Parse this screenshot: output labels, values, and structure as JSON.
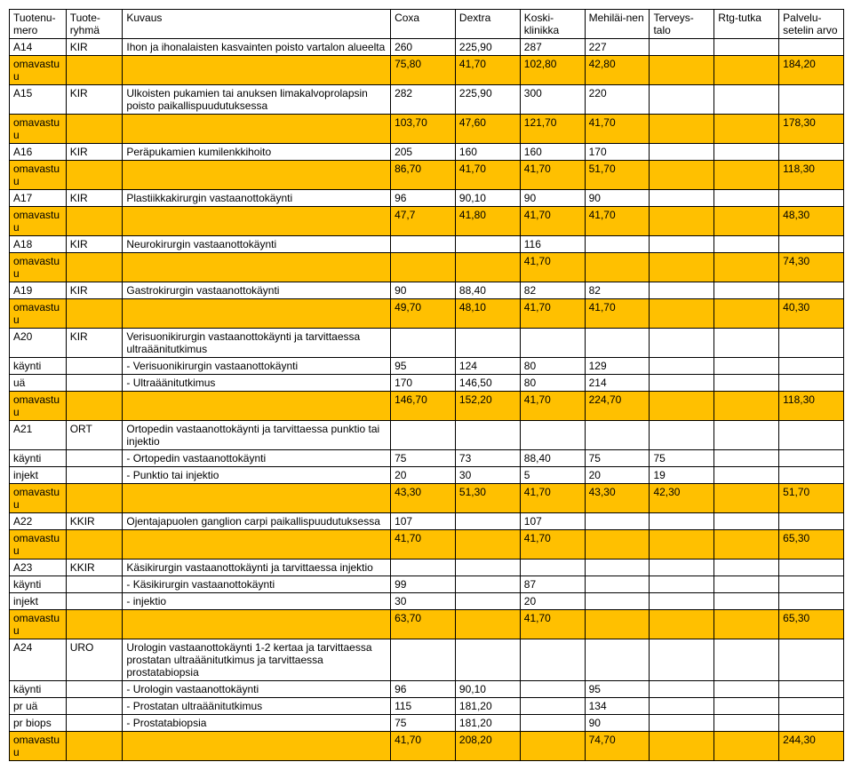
{
  "headers": [
    "Tuotenu-mero",
    "Tuote-ryhmä",
    "Kuvaus",
    "Coxa",
    "Dextra",
    "Koski-klinikka",
    "Mehiläi-nen",
    "Terveys-talo",
    "Rtg-tutka",
    "Palvelu-setelin arvo"
  ],
  "rows": [
    {
      "hl": false,
      "cells": [
        "A14",
        "KIR",
        "Ihon ja ihonalaisten kasvainten poisto vartalon alueelta",
        "260",
        "225,90",
        "287",
        "227",
        "",
        "",
        ""
      ]
    },
    {
      "hl": true,
      "cells": [
        "omavastuu",
        "",
        "",
        "75,80",
        "41,70",
        "102,80",
        "42,80",
        "",
        "",
        "184,20"
      ]
    },
    {
      "hl": false,
      "cells": [
        "A15",
        "KIR",
        "Ulkoisten pukamien tai anuksen limakalvoprolapsin poisto paikallispuudutuksessa",
        "282",
        "225,90",
        "300",
        "220",
        "",
        "",
        ""
      ]
    },
    {
      "hl": true,
      "cells": [
        "omavastuu",
        "",
        "",
        "103,70",
        "47,60",
        "121,70",
        "41,70",
        "",
        "",
        "178,30"
      ]
    },
    {
      "hl": false,
      "cells": [
        "A16",
        "KIR",
        "Peräpukamien kumilenkkihoito",
        "205",
        "160",
        "160",
        "170",
        "",
        "",
        ""
      ]
    },
    {
      "hl": true,
      "cells": [
        "omavastuu",
        "",
        "",
        "86,70",
        "41,70",
        "41,70",
        "51,70",
        "",
        "",
        "118,30"
      ]
    },
    {
      "hl": false,
      "cells": [
        "A17",
        "KIR",
        "Plastiikkakirurgin vastaanottokäynti",
        "96",
        "90,10",
        "90",
        "90",
        "",
        "",
        ""
      ]
    },
    {
      "hl": true,
      "cells": [
        "omavastuu",
        "",
        "",
        "47,7",
        "41,80",
        "41,70",
        "41,70",
        "",
        "",
        "48,30"
      ]
    },
    {
      "hl": false,
      "cells": [
        "A18",
        "KIR",
        "Neurokirurgin vastaanottokäynti",
        "",
        "",
        "116",
        "",
        "",
        "",
        ""
      ]
    },
    {
      "hl": true,
      "cells": [
        "omavastuu",
        "",
        "",
        "",
        "",
        "41,70",
        "",
        "",
        "",
        "74,30"
      ]
    },
    {
      "hl": false,
      "cells": [
        "A19",
        "KIR",
        "Gastrokirurgin vastaanottokäynti",
        "90",
        "88,40",
        "82",
        "82",
        "",
        "",
        ""
      ]
    },
    {
      "hl": true,
      "cells": [
        "omavastuu",
        "",
        "",
        "49,70",
        "48,10",
        "41,70",
        "41,70",
        "",
        "",
        "40,30"
      ]
    },
    {
      "hl": false,
      "cells": [
        "A20",
        "KIR",
        "Verisuonikirurgin vastaanottokäynti ja tarvittaessa ultraäänitutkimus",
        "",
        "",
        "",
        "",
        "",
        "",
        ""
      ]
    },
    {
      "hl": false,
      "cells": [
        "käynti",
        "",
        "   -   Verisuonikirurgin vastaanottokäynti",
        "95",
        "124",
        "80",
        "129",
        "",
        "",
        ""
      ]
    },
    {
      "hl": false,
      "cells": [
        "uä",
        "",
        "   -   Ultraäänitutkimus",
        "170",
        "146,50",
        "80",
        "214",
        "",
        "",
        ""
      ]
    },
    {
      "hl": true,
      "cells": [
        "omavastuu",
        "",
        "",
        "146,70",
        "152,20",
        "41,70",
        "224,70",
        "",
        "",
        "118,30"
      ]
    },
    {
      "hl": false,
      "cells": [
        "A21",
        "ORT",
        "Ortopedin vastaanottokäynti ja tarvittaessa punktio tai injektio",
        "",
        "",
        "",
        "",
        "",
        "",
        ""
      ]
    },
    {
      "hl": false,
      "cells": [
        "käynti",
        "",
        "   -   Ortopedin vastaanottokäynti",
        "75",
        "73",
        "88,40",
        "75",
        "75",
        "",
        ""
      ]
    },
    {
      "hl": false,
      "cells": [
        "injekt",
        "",
        "   -   Punktio tai injektio",
        "20",
        "30",
        "5",
        "20",
        "19",
        "",
        ""
      ]
    },
    {
      "hl": true,
      "cells": [
        "omavastuu",
        "",
        "",
        "43,30",
        "51,30",
        "41,70",
        "43,30",
        "42,30",
        "",
        "51,70"
      ]
    },
    {
      "hl": false,
      "cells": [
        "A22",
        "KKIR",
        "Ojentajapuolen ganglion carpi paikallispuudutuksessa",
        "107",
        "",
        "107",
        "",
        "",
        "",
        ""
      ]
    },
    {
      "hl": true,
      "cells": [
        "omavastuu",
        "",
        "",
        "41,70",
        "",
        "41,70",
        "",
        "",
        "",
        "65,30"
      ]
    },
    {
      "hl": false,
      "cells": [
        "A23",
        "KKIR",
        "Käsikirurgin vastaanottokäynti ja tarvittaessa injektio",
        "",
        "",
        "",
        "",
        "",
        "",
        ""
      ]
    },
    {
      "hl": false,
      "cells": [
        "käynti",
        "",
        "   -   Käsikirurgin vastaanottokäynti",
        "99",
        "",
        "87",
        "",
        "",
        "",
        ""
      ]
    },
    {
      "hl": false,
      "cells": [
        "injekt",
        "",
        "   -   injektio",
        "30",
        "",
        "20",
        "",
        "",
        "",
        ""
      ]
    },
    {
      "hl": true,
      "cells": [
        "omavastuu",
        "",
        "",
        "63,70",
        "",
        "41,70",
        "",
        "",
        "",
        "65,30"
      ]
    },
    {
      "hl": false,
      "cells": [
        "A24",
        "URO",
        "Urologin vastaanottokäynti 1-2 kertaa ja tarvittaessa prostatan ultraäänitutkimus ja tarvittaessa prostatabiopsia",
        "",
        "",
        "",
        "",
        "",
        "",
        ""
      ]
    },
    {
      "hl": false,
      "cells": [
        "käynti",
        "",
        "   -   Urologin vastaanottokäynti",
        "96",
        "90,10",
        "",
        "95",
        "",
        "",
        ""
      ]
    },
    {
      "hl": false,
      "cells": [
        "pr uä",
        "",
        "   -   Prostatan ultraäänitutkimus",
        "115",
        "181,20",
        "",
        "134",
        "",
        "",
        ""
      ]
    },
    {
      "hl": false,
      "cells": [
        "pr biops",
        "",
        "   -   Prostatabiopsia",
        "75",
        "181,20",
        "",
        "90",
        "",
        "",
        ""
      ]
    },
    {
      "hl": true,
      "cells": [
        "omavastuu",
        "",
        "",
        "41,70",
        "208,20",
        "",
        "74,70",
        "",
        "",
        "244,30"
      ]
    }
  ],
  "colors": {
    "highlight": "#ffc000",
    "border": "#000000",
    "background": "#ffffff",
    "text": "#000000"
  }
}
